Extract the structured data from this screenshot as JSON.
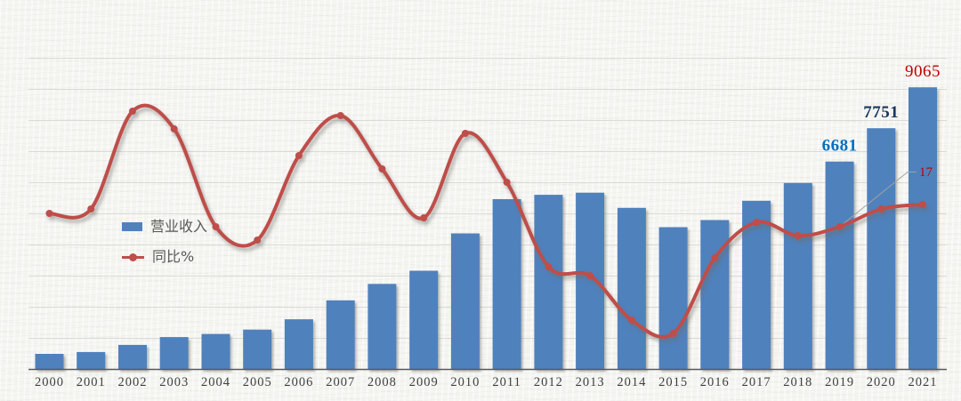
{
  "chart_data": {
    "type": "bar+line",
    "title": "",
    "xlabel": "",
    "ylabel": "",
    "categories": [
      "2000",
      "2001",
      "2002",
      "2003",
      "2004",
      "2005",
      "2006",
      "2007",
      "2008",
      "2009",
      "2010",
      "2011",
      "2012",
      "2013",
      "2014",
      "2015",
      "2016",
      "2017",
      "2018",
      "2019",
      "2020",
      "2021"
    ],
    "series": [
      {
        "name": "营业收入",
        "type": "bar",
        "color": "#4f81bd",
        "values": [
          500,
          560,
          790,
          1040,
          1140,
          1280,
          1610,
          2220,
          2750,
          3170,
          4370,
          5470,
          5610,
          5680,
          5190,
          4570,
          4800,
          5420,
          5990,
          6681,
          7751,
          9065
        ]
      },
      {
        "name": "同比%",
        "type": "line",
        "color": "#bf4d4a",
        "axis": "secondary",
        "unit": "%",
        "values": [
          15,
          16,
          38,
          34,
          12,
          9,
          28,
          37,
          25,
          14,
          33,
          22,
          3,
          1,
          -9,
          -12,
          5,
          13,
          10,
          12,
          16,
          17
        ]
      }
    ],
    "annotations": {
      "bar_value_labels": [
        {
          "category": "2019",
          "text": "6681",
          "color": "#0070c0",
          "bold": true
        },
        {
          "category": "2020",
          "text": "7751",
          "color": "#17375e",
          "bold": true
        },
        {
          "category": "2021",
          "text": "9065",
          "color": "#c00000",
          "bold": false
        }
      ],
      "line_value_label": {
        "text": "17",
        "color": "#c00000",
        "leader_anchor_category": "2019",
        "has_leader_line": true
      }
    },
    "axes": {
      "x_labels_visible": true,
      "y_left_labels_visible": false,
      "y_right_labels_visible": false,
      "gridlines": "horizontal",
      "bar_axis": {
        "min": 0,
        "gridline_step": 1000,
        "gridline_count": 10
      },
      "legend_position": "middle-left"
    }
  },
  "legend": {
    "items": [
      {
        "label": "营业收入",
        "swatch": "bar",
        "color": "#4f81bd"
      },
      {
        "label": "同比%",
        "swatch": "line-marker",
        "color": "#bf4d4a"
      }
    ]
  },
  "colors": {
    "bar": "#4f81bd",
    "line": "#bf4d4a",
    "grid": "#dadad6",
    "axis": "#595959",
    "year_label": "#3f3f3f",
    "legend_text": "#595959",
    "leader_line": "#a3a3a0",
    "background": "#f5f5f2"
  }
}
